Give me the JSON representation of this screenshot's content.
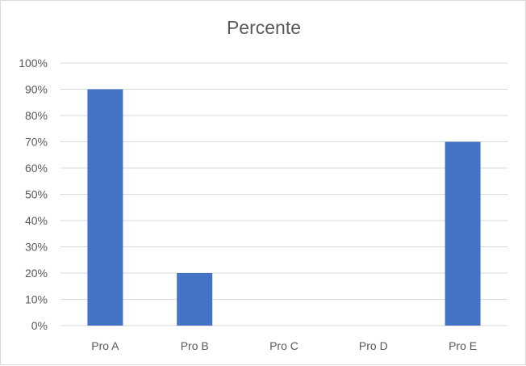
{
  "chart_data": {
    "type": "bar",
    "title": "Percente",
    "categories": [
      "Pro A",
      "Pro B",
      "Pro C",
      "Pro D",
      "Pro E"
    ],
    "values": [
      90,
      20,
      0,
      0,
      70
    ],
    "ylim": [
      0,
      100
    ],
    "yticks": [
      "0%",
      "10%",
      "20%",
      "30%",
      "40%",
      "50%",
      "60%",
      "70%",
      "80%",
      "90%",
      "100%"
    ],
    "grid": true,
    "legend": "none",
    "bar_color": "#4472c4",
    "grid_color": "#d9d9d9",
    "text_color": "#595959"
  }
}
